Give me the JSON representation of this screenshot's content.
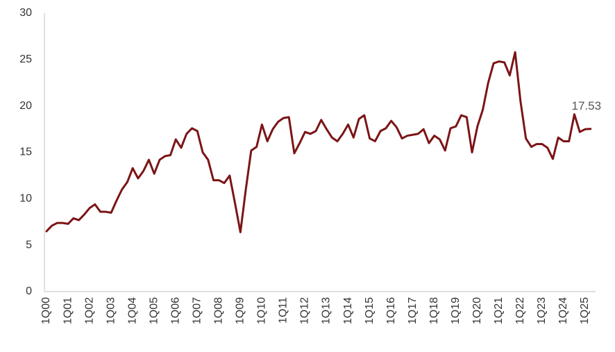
{
  "chart_data": {
    "type": "line",
    "categories": [
      "1Q00",
      null,
      null,
      null,
      "1Q01",
      null,
      null,
      null,
      "1Q02",
      null,
      null,
      null,
      "1Q03",
      null,
      null,
      null,
      "1Q04",
      null,
      null,
      null,
      "1Q05",
      null,
      null,
      null,
      "1Q06",
      null,
      null,
      null,
      "1Q07",
      null,
      null,
      null,
      "1Q08",
      null,
      null,
      null,
      "1Q09",
      null,
      null,
      null,
      "1Q10",
      null,
      null,
      null,
      "1Q11",
      null,
      null,
      null,
      "1Q12",
      null,
      null,
      null,
      "1Q13",
      null,
      null,
      null,
      "1Q14",
      null,
      null,
      null,
      "1Q15",
      null,
      null,
      null,
      "1Q16",
      null,
      null,
      null,
      "1Q17",
      null,
      null,
      null,
      "1Q18",
      null,
      null,
      null,
      "1Q19",
      null,
      null,
      null,
      "1Q20",
      null,
      null,
      null,
      "1Q21",
      null,
      null,
      null,
      "1Q22",
      null,
      null,
      null,
      "1Q23",
      null,
      null,
      null,
      "1Q24",
      null,
      null,
      null,
      "1Q25",
      null
    ],
    "values": [
      6.5,
      7.1,
      7.4,
      7.4,
      7.3,
      7.9,
      7.7,
      8.3,
      9.0,
      9.4,
      8.6,
      8.6,
      8.5,
      9.8,
      11.0,
      11.8,
      13.3,
      12.2,
      13.0,
      14.2,
      12.7,
      14.2,
      14.6,
      14.7,
      16.4,
      15.5,
      17.0,
      17.6,
      17.3,
      15.0,
      14.2,
      12.0,
      12.0,
      11.7,
      12.5,
      9.5,
      6.4,
      11.0,
      15.2,
      15.6,
      18.0,
      16.2,
      17.5,
      18.3,
      18.7,
      18.8,
      14.9,
      16.0,
      17.2,
      17.0,
      17.3,
      18.5,
      17.5,
      16.6,
      16.2,
      17.0,
      18.0,
      16.6,
      18.6,
      19.0,
      16.5,
      16.2,
      17.3,
      17.6,
      18.4,
      17.7,
      16.5,
      16.8,
      16.9,
      17.0,
      17.5,
      16.0,
      16.8,
      16.4,
      15.2,
      17.6,
      17.8,
      19.0,
      18.8,
      15.0,
      17.8,
      19.6,
      22.5,
      24.6,
      24.8,
      24.7,
      23.3,
      25.8,
      20.5,
      16.5,
      15.6,
      15.9,
      15.9,
      15.5,
      14.3,
      16.6,
      16.2,
      16.2,
      19.1,
      17.2,
      17.5,
      17.53
    ],
    "color": "#7b1416",
    "annotation": "17.53",
    "ylim": [
      0,
      30
    ],
    "yticks": [
      0,
      5,
      10,
      15,
      20,
      25,
      30
    ],
    "grid": false
  }
}
